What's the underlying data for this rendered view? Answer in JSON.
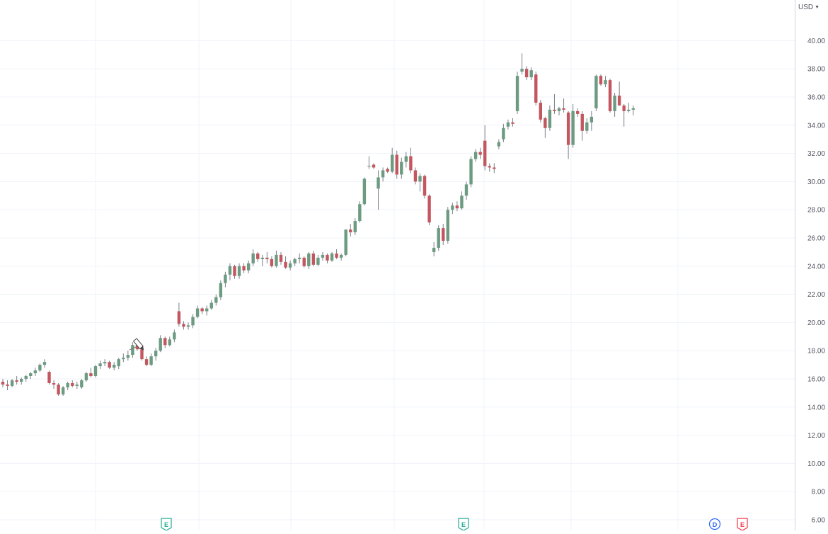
{
  "axis": {
    "currency": "USD",
    "tick_labels": [
      "6.00",
      "8.00",
      "10.00",
      "12.00",
      "14.00",
      "16.00",
      "18.00",
      "20.00",
      "22.00",
      "24.00",
      "26.00",
      "28.00",
      "30.00",
      "32.00",
      "34.00",
      "36.00",
      "38.00",
      "40.00"
    ]
  },
  "events": [
    {
      "letter": "E",
      "kind": "earnings",
      "color": "#22ab94"
    },
    {
      "letter": "E",
      "kind": "earnings",
      "color": "#22ab94"
    },
    {
      "letter": "D",
      "kind": "dividend",
      "color": "#2962ff"
    },
    {
      "letter": "E",
      "kind": "earnings",
      "color": "#f23645"
    }
  ],
  "colors": {
    "up": "#6c9b82",
    "down": "#c4565f",
    "wick": "#7a7f87",
    "grid": "#f0f3fa",
    "axis_border": "#d1d4dc",
    "axis_text": "#50535e"
  },
  "chart_data": {
    "type": "candlestick",
    "ylim": [
      6,
      41
    ],
    "y_ticks": [
      6,
      8,
      10,
      12,
      14,
      16,
      18,
      20,
      22,
      24,
      26,
      28,
      30,
      32,
      34,
      36,
      38,
      40
    ],
    "candles": [
      [
        15.8,
        16.0,
        15.4,
        15.6
      ],
      [
        15.6,
        15.9,
        15.2,
        15.5
      ],
      [
        15.5,
        16.0,
        15.4,
        15.9
      ],
      [
        15.9,
        16.2,
        15.6,
        15.8
      ],
      [
        15.8,
        16.1,
        15.6,
        16.0
      ],
      [
        16.0,
        16.3,
        15.8,
        16.2
      ],
      [
        16.2,
        16.5,
        16.0,
        16.4
      ],
      [
        16.4,
        16.8,
        16.2,
        16.6
      ],
      [
        16.6,
        17.1,
        16.5,
        17.0
      ],
      [
        17.0,
        17.4,
        16.8,
        17.2
      ],
      [
        16.5,
        16.6,
        15.6,
        15.7
      ],
      [
        15.7,
        15.9,
        15.3,
        15.6
      ],
      [
        15.6,
        15.7,
        14.8,
        14.9
      ],
      [
        14.9,
        15.5,
        14.8,
        15.4
      ],
      [
        15.4,
        15.8,
        15.2,
        15.7
      ],
      [
        15.7,
        15.9,
        15.4,
        15.5
      ],
      [
        15.5,
        15.8,
        15.3,
        15.6
      ],
      [
        15.4,
        16.0,
        15.3,
        15.9
      ],
      [
        15.9,
        16.5,
        15.8,
        16.4
      ],
      [
        16.4,
        16.8,
        16.1,
        16.2
      ],
      [
        16.2,
        17.0,
        16.1,
        16.9
      ],
      [
        16.9,
        17.3,
        16.7,
        17.1
      ],
      [
        17.1,
        17.4,
        16.9,
        17.2
      ],
      [
        17.2,
        17.3,
        16.7,
        16.8
      ],
      [
        16.8,
        17.2,
        16.6,
        17.0
      ],
      [
        16.9,
        17.5,
        16.7,
        17.4
      ],
      [
        17.4,
        17.8,
        17.2,
        17.5
      ],
      [
        17.5,
        18.0,
        17.3,
        17.7
      ],
      [
        17.7,
        18.6,
        17.5,
        18.4
      ],
      [
        18.4,
        18.6,
        18.0,
        18.1
      ],
      [
        18.1,
        18.2,
        17.3,
        17.4
      ],
      [
        17.4,
        17.6,
        16.9,
        17.0
      ],
      [
        17.0,
        17.8,
        16.9,
        17.6
      ],
      [
        17.6,
        18.2,
        17.3,
        18.0
      ],
      [
        18.0,
        19.1,
        17.9,
        18.9
      ],
      [
        18.9,
        19.0,
        18.2,
        18.4
      ],
      [
        18.4,
        19.0,
        18.3,
        18.8
      ],
      [
        18.8,
        19.5,
        18.6,
        19.3
      ],
      [
        20.8,
        21.4,
        19.7,
        19.9
      ],
      [
        19.9,
        20.1,
        19.5,
        19.7
      ],
      [
        19.7,
        20.0,
        19.5,
        19.8
      ],
      [
        19.8,
        20.6,
        19.6,
        20.4
      ],
      [
        20.4,
        21.2,
        20.3,
        21.0
      ],
      [
        21.0,
        21.1,
        20.6,
        20.8
      ],
      [
        20.8,
        21.2,
        20.5,
        21.0
      ],
      [
        21.0,
        21.6,
        20.9,
        21.4
      ],
      [
        21.4,
        22.0,
        21.2,
        21.8
      ],
      [
        21.8,
        23.0,
        21.6,
        22.8
      ],
      [
        22.8,
        23.6,
        22.5,
        23.4
      ],
      [
        23.4,
        24.2,
        23.0,
        24.0
      ],
      [
        24.0,
        24.1,
        23.1,
        23.3
      ],
      [
        23.3,
        24.2,
        23.1,
        24.0
      ],
      [
        24.0,
        24.2,
        23.5,
        23.7
      ],
      [
        23.7,
        24.4,
        23.5,
        24.2
      ],
      [
        24.2,
        25.2,
        24.0,
        24.9
      ],
      [
        24.9,
        25.0,
        24.3,
        24.5
      ],
      [
        24.5,
        24.8,
        24.0,
        24.6
      ],
      [
        24.6,
        25.0,
        24.2,
        24.5
      ],
      [
        24.5,
        24.7,
        23.9,
        24.0
      ],
      [
        24.0,
        25.1,
        23.9,
        24.8
      ],
      [
        24.8,
        25.0,
        24.1,
        24.3
      ],
      [
        24.3,
        24.7,
        23.8,
        23.9
      ],
      [
        23.9,
        24.4,
        23.7,
        24.2
      ],
      [
        24.2,
        24.6,
        24.0,
        24.5
      ],
      [
        24.5,
        24.9,
        24.2,
        24.6
      ],
      [
        24.6,
        24.7,
        23.9,
        24.0
      ],
      [
        24.0,
        25.0,
        23.8,
        24.9
      ],
      [
        24.9,
        25.1,
        24.0,
        24.1
      ],
      [
        24.1,
        24.8,
        24.0,
        24.6
      ],
      [
        24.6,
        25.0,
        24.4,
        24.8
      ],
      [
        24.8,
        24.9,
        24.2,
        24.4
      ],
      [
        24.4,
        25.0,
        24.3,
        24.9
      ],
      [
        24.9,
        25.2,
        24.5,
        24.6
      ],
      [
        24.6,
        24.9,
        24.4,
        24.8
      ],
      [
        24.8,
        26.6,
        24.7,
        26.6
      ],
      [
        26.6,
        27.0,
        26.1,
        26.4
      ],
      [
        26.4,
        27.4,
        26.2,
        27.2
      ],
      [
        27.2,
        28.6,
        27.1,
        28.4
      ],
      [
        28.4,
        30.3,
        28.3,
        30.2
      ],
      [
        31.1,
        31.8,
        30.9,
        31.1
      ],
      [
        31.2,
        31.3,
        30.9,
        31.0
      ],
      [
        29.5,
        30.8,
        28.0,
        30.3
      ],
      [
        30.3,
        31.0,
        30.0,
        30.8
      ],
      [
        30.9,
        31.0,
        30.6,
        30.7
      ],
      [
        30.7,
        32.4,
        30.6,
        31.9
      ],
      [
        31.9,
        32.2,
        30.2,
        30.5
      ],
      [
        30.5,
        31.7,
        30.2,
        31.4
      ],
      [
        31.4,
        32.1,
        31.0,
        31.8
      ],
      [
        31.8,
        32.4,
        30.6,
        30.8
      ],
      [
        30.8,
        31.0,
        29.8,
        30.0
      ],
      [
        30.0,
        30.6,
        29.3,
        30.4
      ],
      [
        30.4,
        30.5,
        28.8,
        29.0
      ],
      [
        29.0,
        29.1,
        26.9,
        27.1
      ],
      [
        25.0,
        25.7,
        24.7,
        25.3
      ],
      [
        25.3,
        26.9,
        25.1,
        26.7
      ],
      [
        26.7,
        27.0,
        25.5,
        25.8
      ],
      [
        25.8,
        28.2,
        25.6,
        28.0
      ],
      [
        28.0,
        28.5,
        27.7,
        28.3
      ],
      [
        28.3,
        28.6,
        27.9,
        28.1
      ],
      [
        28.1,
        29.3,
        28.0,
        29.0
      ],
      [
        29.0,
        30.0,
        28.7,
        29.8
      ],
      [
        29.8,
        31.8,
        29.6,
        31.6
      ],
      [
        31.6,
        32.3,
        31.4,
        32.1
      ],
      [
        32.1,
        32.4,
        31.6,
        31.9
      ],
      [
        32.9,
        34.0,
        30.8,
        31.1
      ],
      [
        31.1,
        31.3,
        30.7,
        31.0
      ],
      [
        31.0,
        31.3,
        30.6,
        30.9
      ],
      [
        32.5,
        33.0,
        32.3,
        32.8
      ],
      [
        33.0,
        34.1,
        32.8,
        33.8
      ],
      [
        33.9,
        34.4,
        33.7,
        34.2
      ],
      [
        34.2,
        34.5,
        33.9,
        34.1
      ],
      [
        35.0,
        37.8,
        34.8,
        37.5
      ],
      [
        37.8,
        39.1,
        37.6,
        38.0
      ],
      [
        38.0,
        38.2,
        37.2,
        37.4
      ],
      [
        37.4,
        38.1,
        37.2,
        37.9
      ],
      [
        37.6,
        37.8,
        35.4,
        35.6
      ],
      [
        35.6,
        35.8,
        34.2,
        34.4
      ],
      [
        34.5,
        34.6,
        33.1,
        33.8
      ],
      [
        33.8,
        35.4,
        33.6,
        35.1
      ],
      [
        35.1,
        36.2,
        34.8,
        35.0
      ],
      [
        35.0,
        35.3,
        34.7,
        35.2
      ],
      [
        35.2,
        35.9,
        34.9,
        35.1
      ],
      [
        34.9,
        35.0,
        31.6,
        32.6
      ],
      [
        32.6,
        35.5,
        32.4,
        35.0
      ],
      [
        35.0,
        35.2,
        34.6,
        34.8
      ],
      [
        34.8,
        35.0,
        32.9,
        33.6
      ],
      [
        33.6,
        34.5,
        33.4,
        34.2
      ],
      [
        34.2,
        35.0,
        33.6,
        34.6
      ],
      [
        35.2,
        37.6,
        35.0,
        37.5
      ],
      [
        37.5,
        37.6,
        36.8,
        36.9
      ],
      [
        36.9,
        37.5,
        36.7,
        37.2
      ],
      [
        37.2,
        37.3,
        34.9,
        35.0
      ],
      [
        35.0,
        36.3,
        34.6,
        36.1
      ],
      [
        36.1,
        37.1,
        35.4,
        35.4
      ],
      [
        35.4,
        35.5,
        33.9,
        35.0
      ],
      [
        35.0,
        35.6,
        34.9,
        35.1
      ],
      [
        35.1,
        35.4,
        34.7,
        35.2
      ]
    ]
  }
}
